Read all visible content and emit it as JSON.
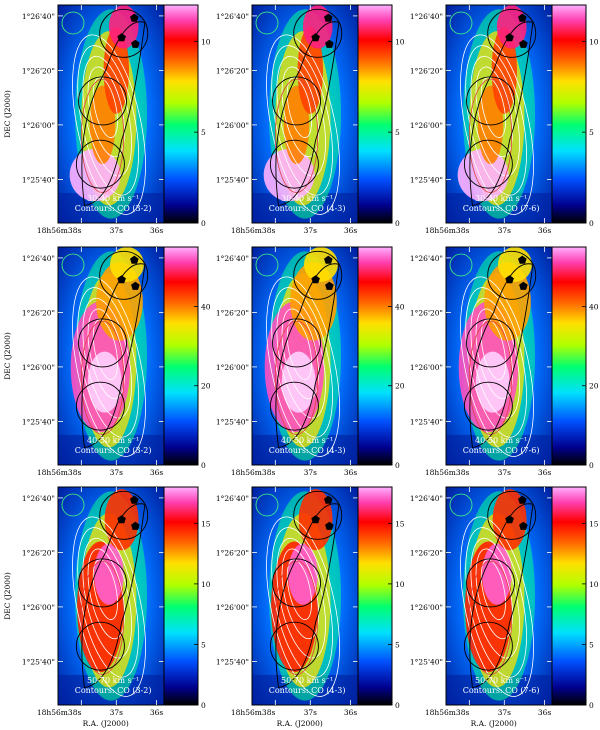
{
  "figure": {
    "ylabel": "DEC (J2000)",
    "xlabel": "R.A. (J2000)",
    "ra_ticks": [
      "18h56m38s",
      "37s",
      "36s"
    ],
    "dec_ticks": [
      "1°26'40\"",
      "1°26'20\"",
      "1°26'00\"",
      "1°25'40\""
    ],
    "colors": {
      "contours": "#ffffff",
      "circles": "#000000",
      "stars": "#000000",
      "secondary_contour": "#e04040"
    }
  },
  "chart_data": [
    {
      "type": "heatmap",
      "row": 1,
      "col": 1,
      "velocity_label": "30-40 km s⁻¹",
      "contour_label": "Contours: CO (3-2)",
      "colorbar": {
        "ticks": [
          "0",
          "5",
          "10"
        ],
        "range": [
          0,
          12
        ]
      },
      "xlabel": "",
      "ylabel": "DEC (J2000)",
      "x_ticks": [
        "18h56m38s",
        "37s",
        "36s"
      ],
      "y_ticks": [
        "1°26'40\"",
        "1°26'20\"",
        "1°26'00\"",
        "1°25'40\""
      ]
    },
    {
      "type": "heatmap",
      "row": 1,
      "col": 2,
      "velocity_label": "30-40 km s⁻¹",
      "contour_label": "Contours: CO (4-3)",
      "colorbar": {
        "ticks": [
          "0",
          "5",
          "10"
        ],
        "range": [
          0,
          12
        ]
      },
      "x_ticks": [
        "18h56m38s",
        "37s",
        "36s"
      ],
      "y_ticks": [
        "1°26'40\"",
        "1°26'20\"",
        "1°26'00\"",
        "1°25'40\""
      ]
    },
    {
      "type": "heatmap",
      "row": 1,
      "col": 3,
      "velocity_label": "30-40 km s⁻¹",
      "contour_label": "Contours: CO (7-6)",
      "colorbar": {
        "ticks": [
          "0",
          "5",
          "10"
        ],
        "range": [
          0,
          12
        ]
      },
      "x_ticks": [
        "18h56m38s",
        "37s",
        "36s"
      ],
      "y_ticks": [
        "1°26'40\"",
        "1°26'20\"",
        "1°26'00\"",
        "1°25'40\""
      ]
    },
    {
      "type": "heatmap",
      "row": 2,
      "col": 1,
      "velocity_label": "40-50 km s⁻¹",
      "contour_label": "Contours: CO (3-2)",
      "colorbar": {
        "ticks": [
          "0",
          "20",
          "40"
        ],
        "range": [
          0,
          55
        ]
      },
      "x_ticks": [
        "18h56m38s",
        "37s",
        "36s"
      ],
      "y_ticks": [
        "1°26'40\"",
        "1°26'20\"",
        "1°26'00\"",
        "1°25'40\""
      ]
    },
    {
      "type": "heatmap",
      "row": 2,
      "col": 2,
      "velocity_label": "40-50 km s⁻¹",
      "contour_label": "Contours: CO (4-3)",
      "colorbar": {
        "ticks": [
          "0",
          "20",
          "40"
        ],
        "range": [
          0,
          55
        ]
      },
      "x_ticks": [
        "18h56m38s",
        "37s",
        "36s"
      ],
      "y_ticks": [
        "1°26'40\"",
        "1°26'20\"",
        "1°26'00\"",
        "1°25'40\""
      ]
    },
    {
      "type": "heatmap",
      "row": 2,
      "col": 3,
      "velocity_label": "40-50 km s⁻¹",
      "contour_label": "Contours: CO (7-6)",
      "colorbar": {
        "ticks": [
          "0",
          "20",
          "40"
        ],
        "range": [
          0,
          55
        ]
      },
      "x_ticks": [
        "18h56m38s",
        "37s",
        "36s"
      ],
      "y_ticks": [
        "1°26'40\"",
        "1°26'20\"",
        "1°26'00\"",
        "1°25'40\""
      ]
    },
    {
      "type": "heatmap",
      "row": 3,
      "col": 1,
      "velocity_label": "50-70 km s⁻¹",
      "contour_label": "Contours: CO (3-2)",
      "colorbar": {
        "ticks": [
          "0",
          "5",
          "10",
          "15"
        ],
        "range": [
          0,
          18
        ]
      },
      "x_ticks": [
        "18h56m38s",
        "37s",
        "36s"
      ],
      "y_ticks": [
        "1°26'40\"",
        "1°26'20\"",
        "1°26'00\"",
        "1°25'40\""
      ]
    },
    {
      "type": "heatmap",
      "row": 3,
      "col": 2,
      "velocity_label": "50-70 km s⁻¹",
      "contour_label": "Contours: CO (4-3)",
      "colorbar": {
        "ticks": [
          "0",
          "5",
          "10",
          "15"
        ],
        "range": [
          0,
          18
        ]
      },
      "x_ticks": [
        "18h56m38s",
        "37s",
        "36s"
      ],
      "y_ticks": [
        "1°26'40\"",
        "1°26'20\"",
        "1°26'00\"",
        "1°25'40\""
      ]
    },
    {
      "type": "heatmap",
      "row": 3,
      "col": 3,
      "velocity_label": "50-70 km s⁻¹",
      "contour_label": "Contours: CO (7-6)",
      "colorbar": {
        "ticks": [
          "0",
          "5",
          "10",
          "15"
        ],
        "range": [
          0,
          18
        ]
      },
      "x_ticks": [
        "18h56m38s",
        "37s",
        "36s"
      ],
      "y_ticks": [
        "1°26'40\"",
        "1°26'20\"",
        "1°26'00\"",
        "1°25'40\""
      ]
    }
  ]
}
